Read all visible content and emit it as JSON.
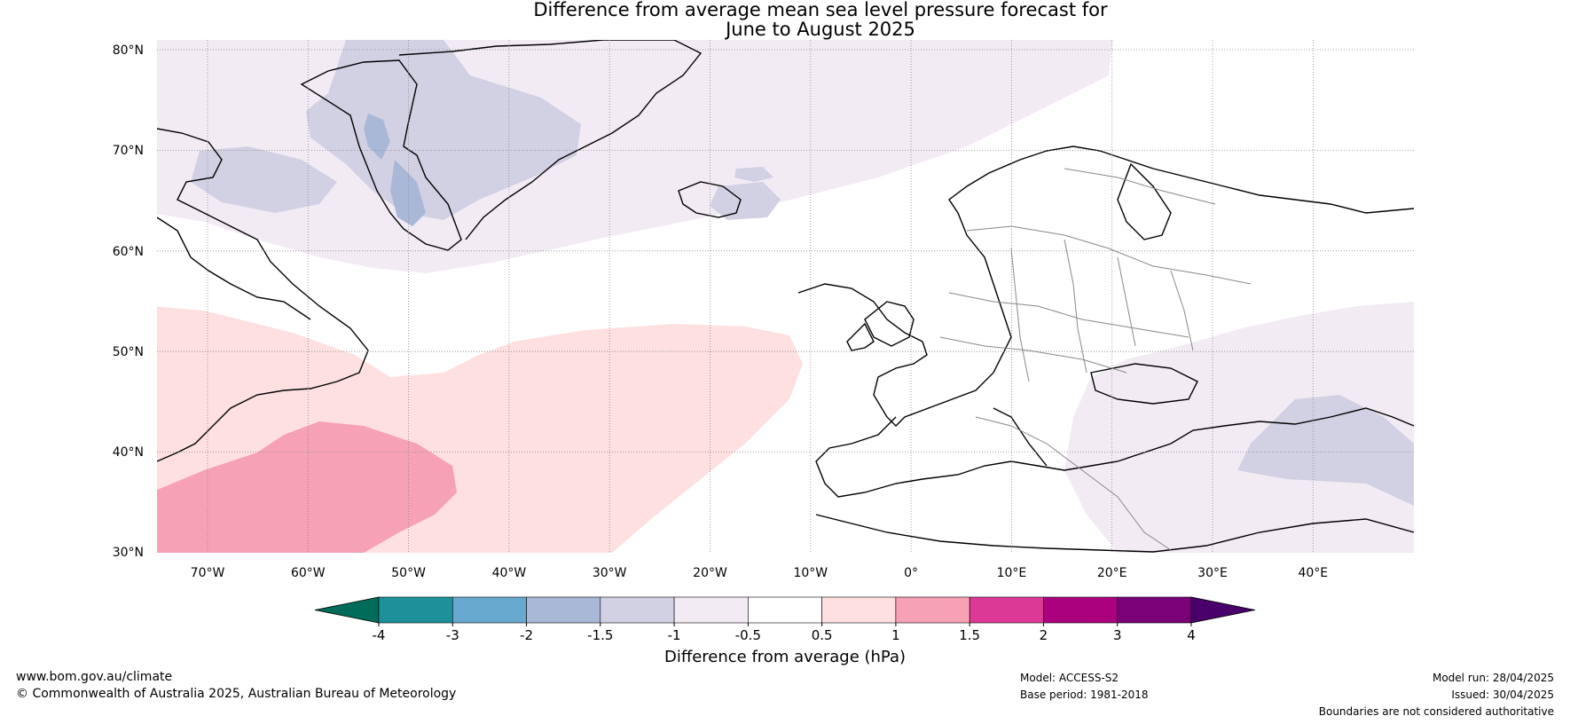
{
  "title": {
    "line1": "Difference from average mean sea level pressure forecast for",
    "line2": "June to August 2025"
  },
  "map": {
    "lat_labels": [
      "80°N",
      "70°N",
      "60°N",
      "50°N",
      "40°N",
      "30°N"
    ],
    "lon_labels": [
      "70°W",
      "60°W",
      "50°W",
      "40°W",
      "30°W",
      "20°W",
      "10°W",
      "0°",
      "10°E",
      "20°E",
      "30°E",
      "40°E"
    ]
  },
  "legend": {
    "ticks": [
      "-4",
      "-3",
      "-2",
      "-1.5",
      "-1",
      "-0.5",
      "0.5",
      "1",
      "1.5",
      "2",
      "3",
      "4"
    ],
    "colors": [
      "#1d9199",
      "#67a9cf",
      "#a9b8d7",
      "#d1d1e3",
      "#f2ebf4",
      "#ffffff",
      "#fde0df",
      "#f7a1b5",
      "#dc3997",
      "#ac017e",
      "#7a0177"
    ],
    "low_extend_color": "#016c59",
    "high_extend_color": "#49006a",
    "label": "Difference from average (hPa)"
  },
  "footer": {
    "website": "www.bom.gov.au/climate",
    "copyright": "© Commonwealth of Australia 2025, Australian Bureau of Meteorology",
    "model": "Model: ACCESS-S2",
    "base_period": "Base period: 1981-2018",
    "model_run": "Model run: 28/04/2025",
    "issued": "Issued: 30/04/2025",
    "disclaimer": "Boundaries are not considered authoritative"
  }
}
